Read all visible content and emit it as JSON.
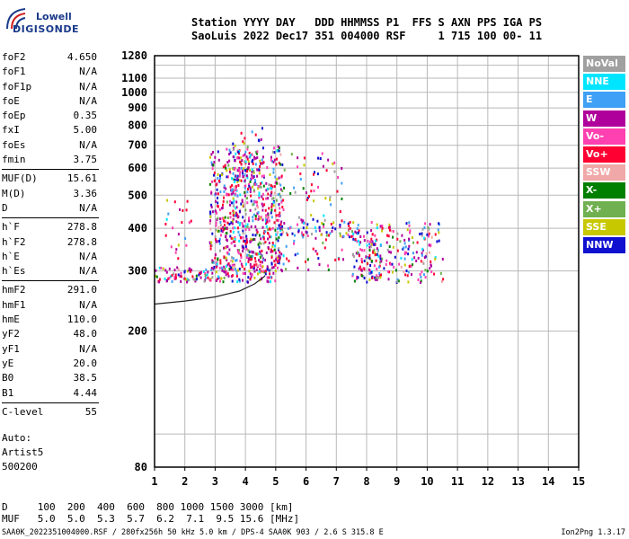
{
  "logo": {
    "line1": "Lowell",
    "line2": "DIGISONDE"
  },
  "header": {
    "line1": "Station YYYY DAY   DDD HHMMSS P1  FFS S AXN PPS IGA PS",
    "line2": "SaoLuis 2022 Dec17 351 004000 RSF     1 715 100 00- 11"
  },
  "params": {
    "group1": [
      {
        "name": "foF2",
        "value": "4.650"
      },
      {
        "name": "foF1",
        "value": "N/A"
      },
      {
        "name": "foF1p",
        "value": "N/A"
      },
      {
        "name": "foE",
        "value": "N/A"
      },
      {
        "name": "foEp",
        "value": "0.35"
      },
      {
        "name": "fxI",
        "value": "5.00"
      },
      {
        "name": "foEs",
        "value": "N/A"
      },
      {
        "name": "fmin",
        "value": "3.75"
      }
    ],
    "group2": [
      {
        "name": "MUF(D)",
        "value": "15.61"
      },
      {
        "name": "M(D)",
        "value": "3.36"
      },
      {
        "name": "D",
        "value": "N/A"
      }
    ],
    "group3": [
      {
        "name": "h`F",
        "value": "278.8"
      },
      {
        "name": "h`F2",
        "value": "278.8"
      },
      {
        "name": "h`E",
        "value": "N/A"
      },
      {
        "name": "h`Es",
        "value": "N/A"
      }
    ],
    "group4": [
      {
        "name": "hmF2",
        "value": "291.0"
      },
      {
        "name": "hmF1",
        "value": "N/A"
      },
      {
        "name": "hmE",
        "value": "110.0"
      },
      {
        "name": "yF2",
        "value": "48.0"
      },
      {
        "name": "yF1",
        "value": "N/A"
      },
      {
        "name": "yE",
        "value": "20.0"
      },
      {
        "name": "B0",
        "value": "38.5"
      },
      {
        "name": "B1",
        "value": "4.44"
      }
    ],
    "group5": [
      {
        "name": "C-level",
        "value": "55"
      }
    ]
  },
  "autoscaling": {
    "line1": "Auto:",
    "line2": "Artist5",
    "line3": "500200"
  },
  "legend": [
    {
      "label": "NoVal",
      "color": "#a0a0a0"
    },
    {
      "label": "NNE",
      "color": "#00e5ff"
    },
    {
      "label": "E",
      "color": "#3fa0f5"
    },
    {
      "label": "W",
      "color": "#b0009c"
    },
    {
      "label": "Vo-",
      "color": "#ff40b0"
    },
    {
      "label": "Vo+",
      "color": "#ff0033"
    },
    {
      "label": "SSW",
      "color": "#f0a8a8"
    },
    {
      "label": "X-",
      "color": "#008000"
    },
    {
      "label": "X+",
      "color": "#70b050"
    },
    {
      "label": "SSE",
      "color": "#c8c800"
    },
    {
      "label": "NNW",
      "color": "#1010d0"
    }
  ],
  "d_muf": {
    "line1": "D     100  200  400  600  800 1000 1500 3000 [km]",
    "line2": "MUF   5.0  5.0  5.3  5.7  6.2  7.1  9.5 15.6 [MHz]"
  },
  "footer": "SAA0K_2022351004000.RSF / 280fx256h 50 kHz 5.0 km / DPS-4 SAA0K 903 / 2.6 S 315.8 E",
  "version": "Ion2Png 1.3.17",
  "chart_data": {
    "type": "scatter",
    "title": "",
    "xlabel": "",
    "ylabel": "",
    "xlim": [
      1,
      15
    ],
    "ylim": [
      80,
      1280
    ],
    "y_scale": "log",
    "x_ticks": [
      1,
      2,
      3,
      4,
      5,
      6,
      7,
      8,
      9,
      10,
      11,
      12,
      13,
      14,
      15
    ],
    "y_ticks": [
      80,
      200,
      300,
      400,
      500,
      600,
      700,
      800,
      900,
      1000,
      1100,
      1280
    ],
    "grid": true,
    "legend_position": "right",
    "ionogram_clusters": [
      {
        "x_range": [
          1.0,
          5.0
        ],
        "y_range": [
          280,
          310
        ],
        "density": "high"
      },
      {
        "x_range": [
          2.8,
          5.2
        ],
        "y_range": [
          300,
          700
        ],
        "density": "high"
      },
      {
        "x_range": [
          3.5,
          4.6
        ],
        "y_range": [
          500,
          800
        ],
        "density": "medium"
      },
      {
        "x_range": [
          5.0,
          7.2
        ],
        "y_range": [
          300,
          700
        ],
        "density": "low"
      },
      {
        "x_range": [
          5.0,
          8.0
        ],
        "y_range": [
          380,
          430
        ],
        "density": "medium"
      },
      {
        "x_range": [
          7.5,
          8.5
        ],
        "y_range": [
          280,
          420
        ],
        "density": "high"
      },
      {
        "x_range": [
          8.5,
          10.5
        ],
        "y_range": [
          280,
          420
        ],
        "density": "medium"
      },
      {
        "x_range": [
          1.3,
          2.2
        ],
        "y_range": [
          280,
          500
        ],
        "density": "low"
      }
    ],
    "profile_curve": {
      "x": [
        1.0,
        2.0,
        3.0,
        3.8,
        4.3,
        4.6,
        4.65
      ],
      "y": [
        240,
        245,
        252,
        262,
        275,
        288,
        291
      ]
    }
  }
}
